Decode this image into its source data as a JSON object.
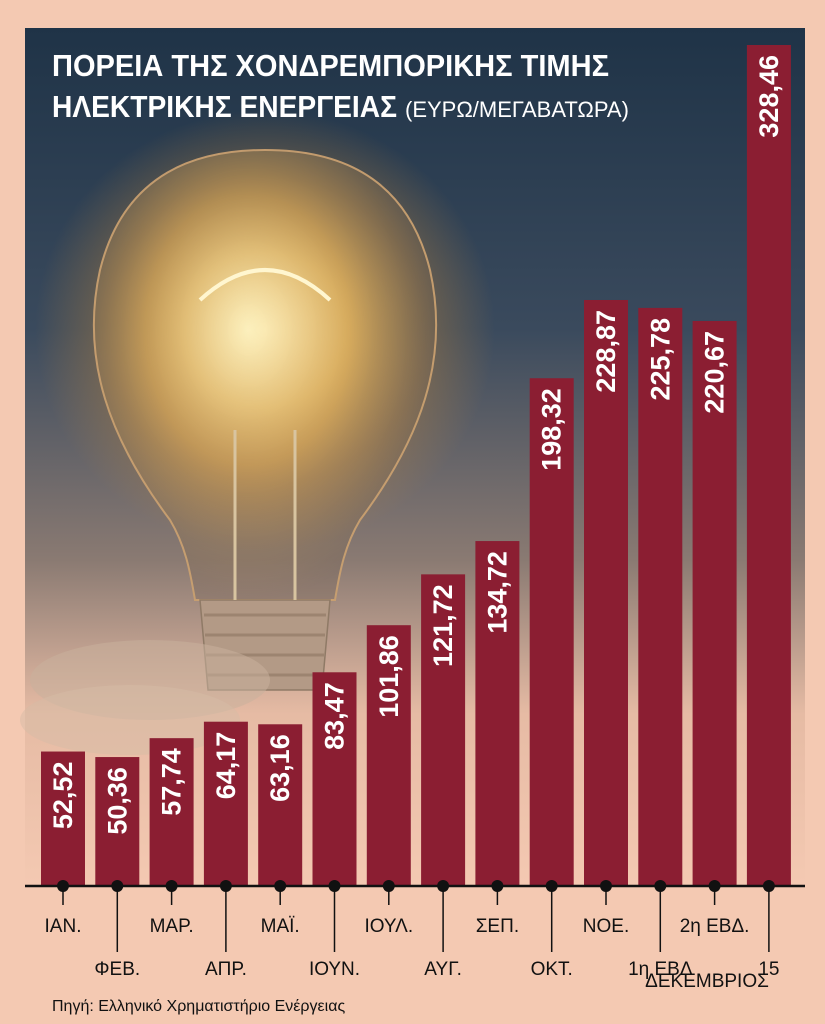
{
  "title_line1": "ΠΟΡΕΙΑ ΤΗΣ ΧΟΝΔΡΕΜΠΟΡΙΚΗΣ ΤΙΜΗΣ",
  "title_line2": "ΗΛΕΚΤΡΙΚΗΣ ΕΝΕΡΓΕΙΑΣ",
  "unit_label": "(ΕΥΡΩ/ΜΕΓΑΒΑΤΩΡΑ)",
  "source": "Πηγή: Ελληνικό Χρηματιστήριο Ενέργειας",
  "colors": {
    "bar": "#8b1e32",
    "background_top": "#1f3347",
    "background_bottom": "#f4c9b2",
    "text": "#ffffff"
  },
  "chart_data": {
    "type": "bar",
    "title": "ΠΟΡΕΙΑ ΤΗΣ ΧΟΝΔΡΕΜΠΟΡΙΚΗΣ ΤΙΜΗΣ ΗΛΕΚΤΡΙΚΗΣ ΕΝΕΡΓΕΙΑΣ (ΕΥΡΩ/ΜΕΓΑΒΑΤΩΡΑ)",
    "categories": [
      [
        "ΙΑΝ."
      ],
      [
        "ΦΕΒ."
      ],
      [
        "ΜΑΡ."
      ],
      [
        "ΑΠΡ."
      ],
      [
        "ΜΑΪ."
      ],
      [
        "ΙΟΥΝ."
      ],
      [
        "ΙΟΥΛ."
      ],
      [
        "ΑΥΓ."
      ],
      [
        "ΣΕΠ."
      ],
      [
        "ΟΚΤ."
      ],
      [
        "ΝΟΕ."
      ],
      [
        "1η ΕΒΔ"
      ],
      [
        "2η ΕΒΔ."
      ],
      [
        "15"
      ]
    ],
    "group_label": "ΔΕΚΕΜΒΡΙΟΣ",
    "values": [
      52.52,
      50.36,
      57.74,
      64.17,
      63.16,
      83.47,
      101.86,
      121.72,
      134.72,
      198.32,
      228.87,
      225.78,
      220.67,
      328.46
    ],
    "value_labels": [
      "52,52",
      "50,36",
      "57,74",
      "64,17",
      "63,16",
      "83,47",
      "101,86",
      "121,72",
      "134,72",
      "198,32",
      "228,87",
      "225,78",
      "220,67",
      "328,46"
    ],
    "ylim": [
      0,
      340
    ],
    "xlabel": "",
    "ylabel": "",
    "grid": false,
    "legend": "none"
  }
}
